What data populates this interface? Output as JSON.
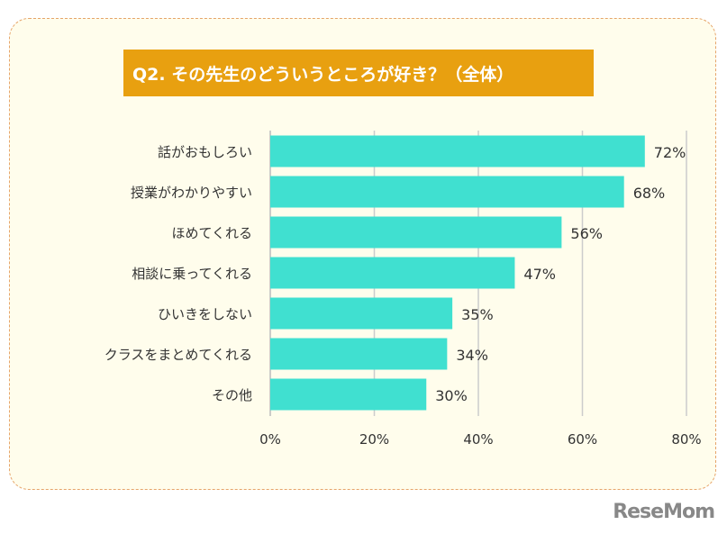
{
  "chart_data": {
    "type": "bar",
    "orientation": "horizontal",
    "title": "Q2. その先生のどういうところが好き？（全体）",
    "categories": [
      "話がおもしろい",
      "授業がわかりやすい",
      "ほめてくれる",
      "相談に乗ってくれる",
      "ひいきをしない",
      "クラスをまとめてくれる",
      "その他"
    ],
    "values": [
      72,
      68,
      56,
      47,
      35,
      34,
      30
    ],
    "value_labels": [
      "72%",
      "68%",
      "56%",
      "47%",
      "35%",
      "34%",
      "30%"
    ],
    "xlim": [
      0,
      80
    ],
    "ticks": [
      0,
      20,
      40,
      60,
      80
    ],
    "tick_labels": [
      "0%",
      "20%",
      "40%",
      "60%",
      "80%"
    ],
    "grid": true,
    "bar_color": "#40e0d0"
  },
  "logo": "ReseMom"
}
